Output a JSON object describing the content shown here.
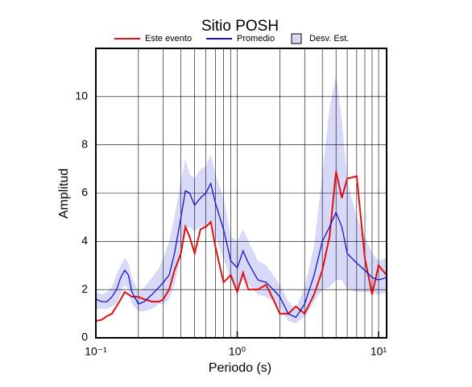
{
  "chart_data": {
    "type": "line",
    "title": "Sitio POSH",
    "xlabel": "Periodo (s)",
    "ylabel": "Amplitud",
    "xscale": "log",
    "grid": true,
    "legend": "top",
    "xlim": [
      0.1,
      11.4
    ],
    "ylim": [
      0,
      12
    ],
    "xticks": [
      {
        "value": 0.1,
        "label": "10⁻¹"
      },
      {
        "value": 1,
        "label": "10⁰"
      },
      {
        "value": 10,
        "label": "10¹"
      }
    ],
    "yticks": [
      0,
      2,
      4,
      6,
      8,
      10
    ],
    "x": [
      0.1,
      0.11,
      0.12,
      0.13,
      0.14,
      0.15,
      0.16,
      0.17,
      0.18,
      0.2,
      0.22,
      0.25,
      0.28,
      0.3,
      0.33,
      0.36,
      0.4,
      0.43,
      0.46,
      0.5,
      0.55,
      0.6,
      0.65,
      0.7,
      0.8,
      0.9,
      1.0,
      1.1,
      1.2,
      1.4,
      1.6,
      1.8,
      2.0,
      2.3,
      2.6,
      3.0,
      3.5,
      4.0,
      4.5,
      5.0,
      5.5,
      6.0,
      7.0,
      8.0,
      9.0,
      10,
      11.4
    ],
    "series": [
      {
        "name": "Este evento",
        "color": "#e01010",
        "values": [
          0.7,
          0.75,
          0.9,
          1.0,
          1.3,
          1.6,
          1.9,
          1.8,
          1.7,
          1.7,
          1.6,
          1.5,
          1.5,
          1.6,
          2.0,
          2.8,
          3.5,
          4.6,
          4.2,
          3.5,
          4.5,
          4.6,
          4.8,
          3.8,
          2.3,
          2.6,
          1.9,
          2.7,
          2.0,
          2.0,
          2.2,
          1.6,
          1.0,
          1.0,
          1.3,
          1.0,
          1.8,
          2.8,
          4.2,
          6.9,
          5.8,
          6.6,
          6.7,
          3.3,
          1.8,
          3.0,
          2.6
        ]
      },
      {
        "name": "Promedio",
        "color": "#1414d0",
        "values": [
          1.6,
          1.5,
          1.5,
          1.7,
          2.0,
          2.5,
          2.8,
          2.6,
          1.9,
          1.4,
          1.5,
          1.8,
          2.1,
          2.3,
          2.6,
          3.5,
          5.0,
          6.1,
          6.0,
          5.5,
          5.8,
          6.0,
          6.4,
          5.6,
          4.5,
          3.2,
          2.9,
          3.6,
          3.1,
          2.4,
          2.3,
          2.0,
          1.7,
          1.0,
          0.85,
          1.4,
          2.6,
          4.0,
          4.6,
          5.2,
          4.6,
          3.5,
          3.1,
          2.8,
          2.5,
          2.4,
          2.5
        ]
      },
      {
        "name": "Desv. Est.",
        "color": "#d8d8f8",
        "type": "band",
        "upper": [
          1.9,
          1.8,
          1.9,
          2.1,
          2.6,
          3.0,
          3.3,
          3.1,
          2.5,
          1.9,
          2.1,
          2.5,
          2.9,
          3.3,
          4.0,
          5.0,
          6.5,
          7.4,
          6.8,
          6.6,
          7.0,
          7.1,
          7.6,
          6.8,
          5.8,
          4.2,
          4.0,
          4.5,
          4.0,
          3.2,
          3.0,
          2.6,
          2.2,
          1.5,
          1.2,
          2.1,
          3.8,
          6.8,
          9.5,
          10.9,
          9.0,
          6.5,
          5.0,
          4.2,
          3.5,
          3.2,
          3.3
        ],
        "lower": [
          1.2,
          1.2,
          1.2,
          1.3,
          1.4,
          1.8,
          2.2,
          2.0,
          1.4,
          1.1,
          1.1,
          1.2,
          1.4,
          1.4,
          1.6,
          2.2,
          3.4,
          4.5,
          4.6,
          4.4,
          4.6,
          4.6,
          4.8,
          4.2,
          3.3,
          2.4,
          2.1,
          2.4,
          2.2,
          1.8,
          1.7,
          1.5,
          1.2,
          0.7,
          0.6,
          0.9,
          1.5,
          2.0,
          2.1,
          2.4,
          2.4,
          2.0,
          1.9,
          1.9,
          1.9,
          1.8,
          1.9
        ]
      }
    ]
  }
}
